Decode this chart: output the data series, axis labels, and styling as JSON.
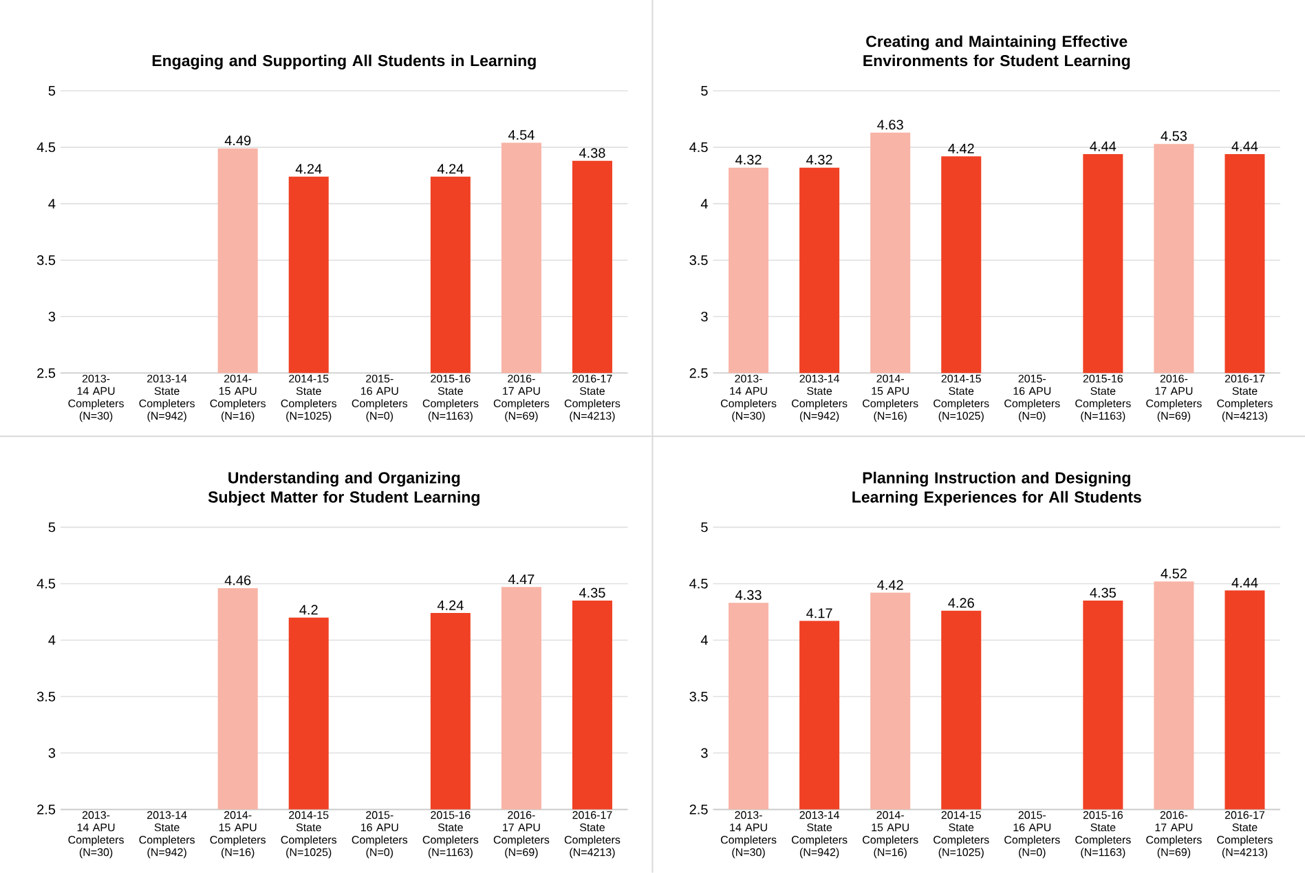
{
  "chart_data": [
    {
      "type": "bar",
      "title": "Engaging and Supporting All Students in Learning",
      "categories": [
        "2013-14 APU Completers (N=30)",
        "2013-14 State Completers (N=942)",
        "2014-15 APU Completers (N=16)",
        "2014-15 State Completers (N=1025)",
        "2015-16 APU Completers (N=0)",
        "2015-16 State Completers (N=1163)",
        "2016-17 APU Completers (N=69)",
        "2016-17 State Completers (N=4213)"
      ],
      "values": [
        null,
        null,
        4.49,
        4.24,
        null,
        4.24,
        4.54,
        4.38
      ],
      "colors": [
        "#f8b4a6",
        "#f04124",
        "#f8b4a6",
        "#f04124",
        "#f8b4a6",
        "#f04124",
        "#f8b4a6",
        "#f04124"
      ],
      "ylim": [
        2.5,
        5
      ],
      "yticks": [
        2.5,
        3,
        3.5,
        4,
        4.5,
        5
      ],
      "grid": "y",
      "data_labels": true
    },
    {
      "type": "bar",
      "title": "Creating and Maintaining Effective Environments for Student Learning",
      "categories": [
        "2013-14 APU Completers (N=30)",
        "2013-14 State Completers (N=942)",
        "2014-15 APU Completers (N=16)",
        "2014-15 State Completers (N=1025)",
        "2015-16 APU Completers (N=0)",
        "2015-16 State Completers (N=1163)",
        "2016-17 APU Completers (N=69)",
        "2016-17 State Completers (N=4213)"
      ],
      "values": [
        4.32,
        4.32,
        4.63,
        4.42,
        null,
        4.44,
        4.53,
        4.44
      ],
      "colors": [
        "#f8b4a6",
        "#f04124",
        "#f8b4a6",
        "#f04124",
        "#f8b4a6",
        "#f04124",
        "#f8b4a6",
        "#f04124"
      ],
      "ylim": [
        2.5,
        5
      ],
      "yticks": [
        2.5,
        3,
        3.5,
        4,
        4.5,
        5
      ],
      "grid": "y",
      "data_labels": true
    },
    {
      "type": "bar",
      "title": "Understanding and Organizing Subject Matter for Student Learning",
      "categories": [
        "2013-14 APU Completers (N=30)",
        "2013-14 State Completers (N=942)",
        "2014-15 APU Completers (N=16)",
        "2014-15 State Completers (N=1025)",
        "2015-16 APU Completers (N=0)",
        "2015-16 State Completers (N=1163)",
        "2016-17 APU Completers (N=69)",
        "2016-17 State Completers (N=4213)"
      ],
      "values": [
        null,
        null,
        4.46,
        4.2,
        null,
        4.24,
        4.47,
        4.35
      ],
      "colors": [
        "#f8b4a6",
        "#f04124",
        "#f8b4a6",
        "#f04124",
        "#f8b4a6",
        "#f04124",
        "#f8b4a6",
        "#f04124"
      ],
      "ylim": [
        2.5,
        5
      ],
      "yticks": [
        2.5,
        3,
        3.5,
        4,
        4.5,
        5
      ],
      "grid": "y",
      "data_labels": true
    },
    {
      "type": "bar",
      "title": "Planning Instruction and Designing Learning Experiences for All Students",
      "categories": [
        "2013-14 APU Completers (N=30)",
        "2013-14 State Completers (N=942)",
        "2014-15 APU Completers (N=16)",
        "2014-15 State Completers (N=1025)",
        "2015-16 APU Completers (N=0)",
        "2015-16 State Completers (N=1163)",
        "2016-17 APU Completers (N=69)",
        "2016-17 State Completers (N=4213)"
      ],
      "values": [
        4.33,
        4.17,
        4.42,
        4.26,
        null,
        4.35,
        4.52,
        4.44
      ],
      "colors": [
        "#f8b4a6",
        "#f04124",
        "#f8b4a6",
        "#f04124",
        "#f8b4a6",
        "#f04124",
        "#f8b4a6",
        "#f04124"
      ],
      "ylim": [
        2.5,
        5
      ],
      "yticks": [
        2.5,
        3,
        3.5,
        4,
        4.5,
        5
      ],
      "grid": "y",
      "data_labels": true
    }
  ]
}
